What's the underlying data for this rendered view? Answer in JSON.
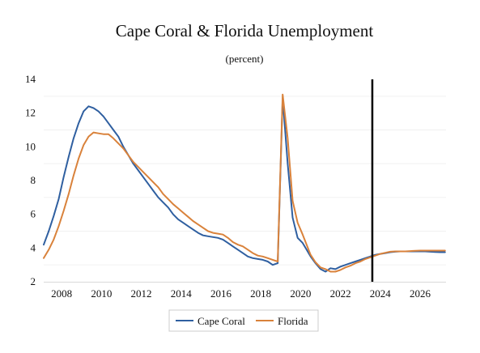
{
  "chart_data": {
    "type": "line",
    "title": "Cape Coral & Florida Unemployment",
    "subtitle": "(percent)",
    "xlabel": "",
    "ylabel": "",
    "xlim": [
      2007.1,
      2027.3
    ],
    "ylim": [
      2,
      14
    ],
    "x_ticks": [
      2008,
      2010,
      2012,
      2014,
      2016,
      2018,
      2020,
      2022,
      2024,
      2026
    ],
    "y_ticks": [
      2,
      4,
      6,
      8,
      10,
      12,
      14
    ],
    "grid": "horizontal-minor",
    "legend_position": "bottom",
    "vertical_marker": {
      "x": 2023.6,
      "color": "#000000"
    },
    "series": [
      {
        "name": "Cape Coral",
        "color": "#2f5fa0",
        "x": [
          2007.1,
          2007.35,
          2007.6,
          2007.85,
          2008.1,
          2008.35,
          2008.6,
          2008.85,
          2009.1,
          2009.35,
          2009.6,
          2009.85,
          2010.1,
          2010.35,
          2010.6,
          2010.85,
          2011.1,
          2011.35,
          2011.6,
          2011.85,
          2012.1,
          2012.35,
          2012.6,
          2012.85,
          2013.1,
          2013.35,
          2013.6,
          2013.85,
          2014.1,
          2014.35,
          2014.6,
          2014.85,
          2015.1,
          2015.35,
          2015.6,
          2015.85,
          2016.1,
          2016.35,
          2016.6,
          2016.85,
          2017.1,
          2017.35,
          2017.6,
          2017.85,
          2018.1,
          2018.35,
          2018.6,
          2018.85,
          2019.1,
          2019.35,
          2019.6,
          2019.85,
          2020.1,
          2020.3,
          2020.5,
          2020.75,
          2021.0,
          2021.25,
          2021.5,
          2021.75,
          2022.0,
          2022.25,
          2022.5,
          2022.75,
          2023.0,
          2023.25,
          2023.5,
          2023.75,
          2024.0,
          2024.25,
          2024.5,
          2024.75,
          2025.0,
          2025.25,
          2025.5,
          2025.75,
          2026.0,
          2026.25,
          2026.5,
          2026.75,
          2027.0,
          2027.25
        ],
        "y": [
          4.2,
          5.0,
          5.9,
          6.9,
          8.2,
          9.4,
          10.5,
          11.4,
          12.1,
          12.4,
          12.3,
          12.1,
          11.8,
          11.4,
          11.0,
          10.6,
          10.0,
          9.5,
          9.0,
          8.6,
          8.2,
          7.8,
          7.4,
          7.0,
          6.7,
          6.4,
          6.0,
          5.7,
          5.5,
          5.3,
          5.1,
          4.9,
          4.75,
          4.7,
          4.65,
          4.6,
          4.5,
          4.3,
          4.1,
          3.9,
          3.7,
          3.5,
          3.4,
          3.35,
          3.3,
          3.2,
          3.0,
          3.1,
          12.9,
          9.0,
          5.8,
          4.6,
          4.3,
          3.9,
          3.5,
          3.1,
          2.75,
          2.6,
          2.8,
          2.75,
          2.9,
          3.0,
          3.1,
          3.2,
          3.3,
          3.4,
          3.5,
          3.6,
          3.65,
          3.7,
          3.75,
          3.78,
          3.8,
          3.8,
          3.8,
          3.8,
          3.8,
          3.8,
          3.78,
          3.76,
          3.75,
          3.75
        ]
      },
      {
        "name": "Florida",
        "color": "#d9823b",
        "x": [
          2007.1,
          2007.35,
          2007.6,
          2007.85,
          2008.1,
          2008.35,
          2008.6,
          2008.85,
          2009.1,
          2009.35,
          2009.6,
          2009.85,
          2010.1,
          2010.35,
          2010.6,
          2010.85,
          2011.1,
          2011.35,
          2011.6,
          2011.85,
          2012.1,
          2012.35,
          2012.6,
          2012.85,
          2013.1,
          2013.35,
          2013.6,
          2013.85,
          2014.1,
          2014.35,
          2014.6,
          2014.85,
          2015.1,
          2015.35,
          2015.6,
          2015.85,
          2016.1,
          2016.35,
          2016.6,
          2016.85,
          2017.1,
          2017.35,
          2017.6,
          2017.85,
          2018.1,
          2018.35,
          2018.6,
          2018.85,
          2019.1,
          2019.35,
          2019.6,
          2019.85,
          2020.1,
          2020.3,
          2020.5,
          2020.75,
          2021.0,
          2021.25,
          2021.5,
          2021.75,
          2022.0,
          2022.25,
          2022.5,
          2022.75,
          2023.0,
          2023.25,
          2023.5,
          2023.75,
          2024.0,
          2024.25,
          2024.5,
          2024.75,
          2025.0,
          2025.25,
          2025.5,
          2025.75,
          2026.0,
          2026.25,
          2026.5,
          2026.75,
          2027.0,
          2027.25
        ],
        "y": [
          3.4,
          3.9,
          4.5,
          5.3,
          6.2,
          7.2,
          8.3,
          9.3,
          10.1,
          10.6,
          10.85,
          10.8,
          10.75,
          10.75,
          10.5,
          10.2,
          9.9,
          9.5,
          9.1,
          8.8,
          8.5,
          8.2,
          7.9,
          7.6,
          7.2,
          6.9,
          6.6,
          6.35,
          6.1,
          5.85,
          5.6,
          5.4,
          5.2,
          5.0,
          4.9,
          4.85,
          4.8,
          4.6,
          4.35,
          4.2,
          4.1,
          3.9,
          3.7,
          3.55,
          3.5,
          3.4,
          3.3,
          3.2,
          13.1,
          10.5,
          6.8,
          5.5,
          4.8,
          4.2,
          3.6,
          3.15,
          2.85,
          2.75,
          2.6,
          2.6,
          2.7,
          2.85,
          2.95,
          3.1,
          3.2,
          3.35,
          3.45,
          3.55,
          3.65,
          3.72,
          3.78,
          3.8,
          3.8,
          3.8,
          3.82,
          3.84,
          3.85,
          3.85,
          3.85,
          3.85,
          3.85,
          3.85
        ]
      }
    ]
  }
}
